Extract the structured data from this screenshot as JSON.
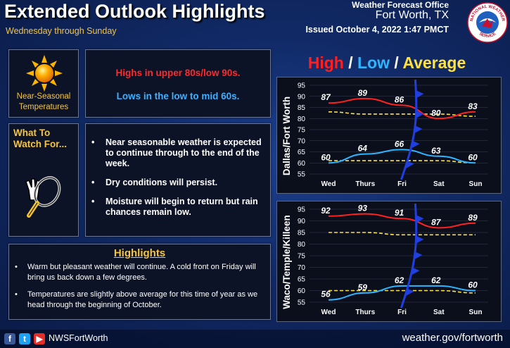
{
  "header": {
    "title": "Extended Outlook Highlights",
    "subtitle": "Wednesday through Sunday",
    "office": "Weather Forecast Office",
    "city": "Fort Worth, TX",
    "issued": "Issued October 4, 2022 1:47 PMCT",
    "logo_text_top": "NATIONAL WEATHER",
    "logo_text_bottom": "SERVICE"
  },
  "sun_panel": {
    "label_line1": "Near-Seasonal",
    "label_line2": "Temperatures"
  },
  "temps_panel": {
    "highs": "Highs in upper 80s/low 90s.",
    "lows": "Lows in the low to mid 60s."
  },
  "watch_panel": {
    "label_line1": "What To",
    "label_line2": "Watch For..."
  },
  "bullets": [
    "Near seasonable weather is expected to continue through to the end of the week.",
    "Dry conditions will persist.",
    "Moisture will begin to return but rain chances remain low."
  ],
  "highlights": {
    "title": "Highlights",
    "items": [
      "Warm but pleasant weather will continue. A cold front on Friday will bring us back down a few degrees.",
      "Temperatures are slightly above average for this time of year as we head through the beginning of October."
    ]
  },
  "legend": {
    "high": "High",
    "low": "Low",
    "average": "Average",
    "sep": "/"
  },
  "colors": {
    "high": "#ff2020",
    "low": "#2fb4ff",
    "average": "#ffe23a",
    "front": "#1f3fe0"
  },
  "chart_data": [
    {
      "type": "line",
      "title": "Dallas/Fort Worth",
      "categories": [
        "Wed",
        "Thurs",
        "Fri",
        "Sat",
        "Sun"
      ],
      "ylim": [
        55,
        95
      ],
      "yticks": [
        55,
        60,
        65,
        70,
        75,
        80,
        85,
        90,
        95
      ],
      "series": [
        {
          "name": "High",
          "values": [
            87,
            89,
            86,
            80,
            83
          ]
        },
        {
          "name": "Low",
          "values": [
            60,
            64,
            66,
            63,
            60
          ]
        },
        {
          "name": "Average",
          "values": [
            83,
            82,
            82,
            82,
            81
          ]
        },
        {
          "name": "Average Low",
          "values": [
            61,
            61,
            61,
            61,
            60
          ]
        }
      ],
      "front_category_position": 2.4
    },
    {
      "type": "line",
      "title": "Waco/Temple/Killeen",
      "categories": [
        "Wed",
        "Thurs",
        "Fri",
        "Sat",
        "Sun"
      ],
      "ylim": [
        55,
        95
      ],
      "yticks": [
        55,
        60,
        65,
        70,
        75,
        80,
        85,
        90,
        95
      ],
      "series": [
        {
          "name": "High",
          "values": [
            92,
            93,
            91,
            87,
            89
          ]
        },
        {
          "name": "Low",
          "values": [
            56,
            59,
            62,
            62,
            60
          ]
        },
        {
          "name": "Average",
          "values": [
            85,
            85,
            84,
            84,
            84
          ]
        },
        {
          "name": "Average Low",
          "values": [
            60,
            60,
            60,
            60,
            59
          ]
        }
      ],
      "front_category_position": 2.4
    }
  ],
  "footer": {
    "facebook": "f",
    "twitter": "t",
    "youtube": "▶",
    "handle": "NWSFortWorth",
    "website": "weather.gov/fortworth"
  }
}
